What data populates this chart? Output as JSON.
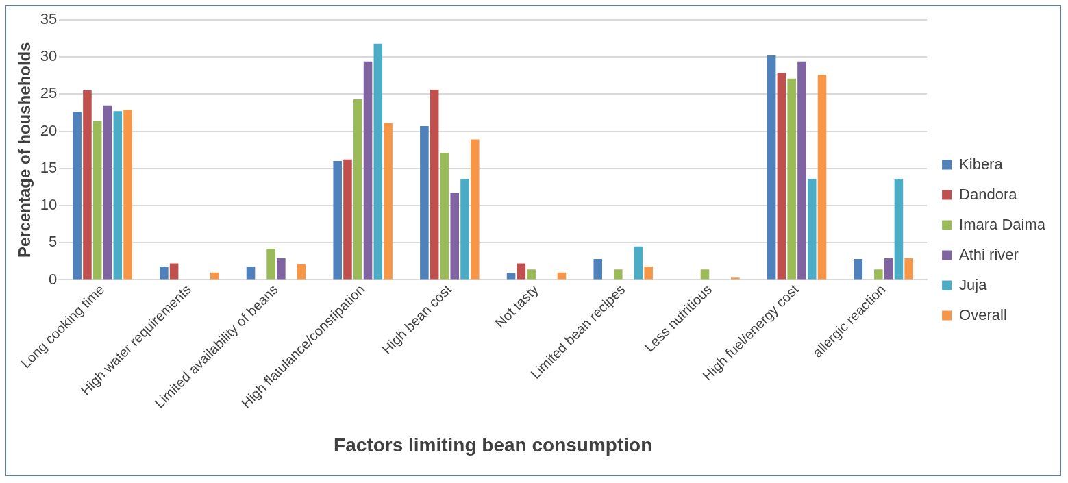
{
  "chart_data": {
    "type": "bar",
    "xlabel": "Factors limiting bean consumption",
    "ylabel": "Percentage of housheholds",
    "categories": [
      "Long cooking time",
      "High water requirements",
      "Limited availability of beans",
      "High flatulance/constipation",
      "High bean cost",
      "Not tasty",
      "Limited bean recipes",
      "Less nutritious",
      "High fuel/energy cost",
      "allergic reaction"
    ],
    "series": [
      {
        "name": "Kibera",
        "color": "#4f81bd",
        "values": [
          22.6,
          1.8,
          1.8,
          16.0,
          20.7,
          0.9,
          2.8,
          0,
          30.2,
          2.8
        ]
      },
      {
        "name": "Dandora",
        "color": "#c0504d",
        "values": [
          25.5,
          2.2,
          0,
          16.2,
          25.6,
          2.2,
          0,
          0,
          27.9,
          0
        ]
      },
      {
        "name": "Imara Daima",
        "color": "#9bbb59",
        "values": [
          21.4,
          0,
          4.2,
          24.3,
          17.1,
          1.4,
          1.4,
          1.4,
          27.1,
          1.4
        ]
      },
      {
        "name": "Athi river",
        "color": "#8064a2",
        "values": [
          23.5,
          0,
          2.9,
          29.4,
          11.7,
          0,
          0,
          0,
          29.4,
          2.9
        ]
      },
      {
        "name": "Juja",
        "color": "#4bacc6",
        "values": [
          22.7,
          0,
          0,
          31.8,
          13.6,
          0,
          4.5,
          0,
          13.6,
          13.6
        ]
      },
      {
        "name": "Overall",
        "color": "#f79646",
        "values": [
          22.9,
          1.0,
          2.1,
          21.1,
          18.9,
          1.0,
          1.8,
          0.3,
          27.6,
          2.9
        ]
      }
    ],
    "ylim": [
      0,
      35
    ],
    "yticks": [
      0,
      5,
      10,
      15,
      20,
      25,
      30,
      35
    ],
    "grid": "y",
    "legend": "right"
  }
}
